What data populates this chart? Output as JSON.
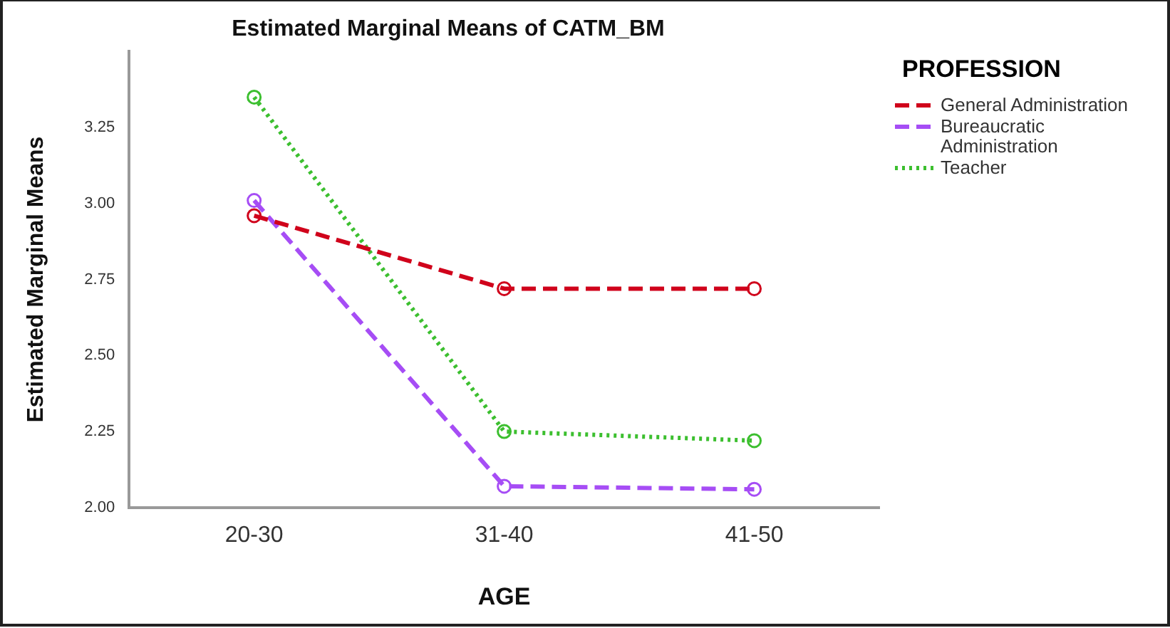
{
  "chart_data": {
    "type": "line",
    "title": "Estimated Marginal Means of CATM_BM",
    "xlabel": "AGE",
    "ylabel": "Estimated Marginal Means",
    "legend_title": "PROFESSION",
    "categories": [
      "20-30",
      "31-40",
      "41-50"
    ],
    "series": [
      {
        "name": "General Administration",
        "color": "#d0021b",
        "line_style": "dashed",
        "values": [
          2.96,
          2.72,
          2.72
        ]
      },
      {
        "name": "Bureaucratic Administration",
        "color": "#a64df5",
        "line_style": "dashed",
        "values": [
          3.01,
          2.07,
          2.06
        ]
      },
      {
        "name": "Teacher",
        "color": "#3cbf2f",
        "line_style": "dotted",
        "values": [
          3.35,
          2.25,
          2.22
        ]
      }
    ],
    "ylim": [
      2.0,
      3.5
    ],
    "yticks": [
      {
        "value": 2,
        "label": "2.00"
      },
      {
        "value": 2.25,
        "label": "2.25"
      },
      {
        "value": 2.5,
        "label": "2.50"
      },
      {
        "value": 2.75,
        "label": "2.75"
      },
      {
        "value": 3,
        "label": "3.00"
      },
      {
        "value": 3.25,
        "label": "3.25"
      }
    ],
    "grid": false,
    "legend": "right",
    "marker": "circle"
  }
}
